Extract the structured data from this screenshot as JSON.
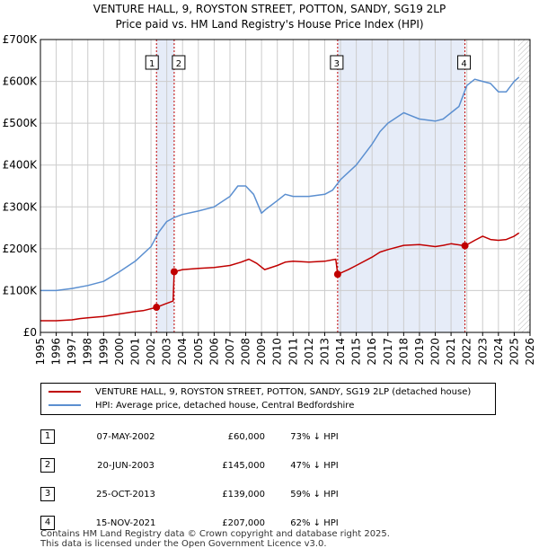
{
  "title_line1": "VENTURE HALL, 9, ROYSTON STREET, POTTON, SANDY, SG19 2LP",
  "title_line2": "Price paid vs. HM Land Registry's House Price Index (HPI)",
  "colors": {
    "property": "#c00000",
    "hpi": "#5b8fd0",
    "shade": "#e6ecf8",
    "grid": "#cccccc"
  },
  "chart_data": {
    "type": "line",
    "xlim": [
      1995,
      2026
    ],
    "ylim": [
      0,
      700000
    ],
    "y_ticks": [
      0,
      100000,
      200000,
      300000,
      400000,
      500000,
      600000,
      700000
    ],
    "y_tick_labels": [
      "£0",
      "£100K",
      "£200K",
      "£300K",
      "£400K",
      "£500K",
      "£600K",
      "£700K"
    ],
    "x_ticks": [
      1995,
      1996,
      1997,
      1998,
      1999,
      2000,
      2001,
      2002,
      2003,
      2004,
      2005,
      2006,
      2007,
      2008,
      2009,
      2010,
      2011,
      2012,
      2013,
      2014,
      2015,
      2016,
      2017,
      2018,
      2019,
      2020,
      2021,
      2022,
      2023,
      2024,
      2025,
      2026
    ],
    "shaded_ranges": [
      [
        2002.35,
        2003.47
      ],
      [
        2013.82,
        2021.88
      ]
    ],
    "hatched_from": 2025.25,
    "series": [
      {
        "name": "VENTURE HALL, 9, ROYSTON STREET, POTTON, SANDY, SG19 2LP (detached house)",
        "x": [
          1995,
          1996,
          1997,
          1997.5,
          1998,
          1999,
          2000,
          2001,
          2001.5,
          2002.35,
          2002.9,
          2003.4,
          2003.47,
          2004,
          2005,
          2006,
          2007,
          2007.7,
          2008.2,
          2008.7,
          2009.2,
          2010,
          2010.5,
          2011,
          2012,
          2013,
          2013.7,
          2013.82,
          2014.5,
          2015,
          2016,
          2016.5,
          2017,
          2018,
          2019,
          2020,
          2020.5,
          2021,
          2021.88,
          2022.5,
          2023,
          2023.5,
          2024,
          2024.5,
          2025,
          2025.3
        ],
        "values": [
          28000,
          28000,
          30000,
          33000,
          35000,
          38000,
          44000,
          50000,
          52000,
          60000,
          68000,
          75000,
          145000,
          150000,
          153000,
          155000,
          160000,
          168000,
          175000,
          165000,
          150000,
          160000,
          168000,
          170000,
          168000,
          170000,
          175000,
          139000,
          150000,
          160000,
          180000,
          192000,
          198000,
          208000,
          210000,
          205000,
          208000,
          212000,
          207000,
          220000,
          230000,
          222000,
          220000,
          222000,
          230000,
          238000
        ]
      },
      {
        "name": "HPI: Average price, detached house, Central Bedfordshire",
        "x": [
          1995,
          1996,
          1997,
          1998,
          1999,
          2000,
          2001,
          2002,
          2002.5,
          2003,
          2003.5,
          2004,
          2005,
          2006,
          2007,
          2007.5,
          2008,
          2008.5,
          2009,
          2009.3,
          2010,
          2010.5,
          2011,
          2012,
          2013,
          2013.5,
          2014,
          2015,
          2016,
          2016.5,
          2017,
          2018,
          2019,
          2020,
          2020.5,
          2021,
          2021.5,
          2022,
          2022.5,
          2023,
          2023.5,
          2024,
          2024.5,
          2025,
          2025.3
        ],
        "values": [
          100000,
          100000,
          105000,
          112000,
          122000,
          145000,
          170000,
          205000,
          240000,
          265000,
          275000,
          282000,
          290000,
          300000,
          325000,
          350000,
          350000,
          330000,
          285000,
          295000,
          315000,
          330000,
          325000,
          325000,
          330000,
          340000,
          365000,
          400000,
          450000,
          480000,
          500000,
          525000,
          510000,
          505000,
          510000,
          525000,
          540000,
          590000,
          605000,
          600000,
          595000,
          575000,
          575000,
          600000,
          610000
        ]
      }
    ],
    "sale_markers": [
      {
        "label": "1",
        "x": 2002.35,
        "value": 60000
      },
      {
        "label": "2",
        "x": 2003.47,
        "value": 145000
      },
      {
        "label": "3",
        "x": 2013.82,
        "value": 139000
      },
      {
        "label": "4",
        "x": 2021.88,
        "value": 207000
      }
    ]
  },
  "legend": {
    "property_label": "VENTURE HALL, 9, ROYSTON STREET, POTTON, SANDY, SG19 2LP (detached house)",
    "hpi_label": "HPI: Average price, detached house, Central Bedfordshire"
  },
  "sales": [
    {
      "num": "1",
      "date": "07-MAY-2002",
      "price": "£60,000",
      "hpi": "73% ↓ HPI"
    },
    {
      "num": "2",
      "date": "20-JUN-2003",
      "price": "£145,000",
      "hpi": "47% ↓ HPI"
    },
    {
      "num": "3",
      "date": "25-OCT-2013",
      "price": "£139,000",
      "hpi": "59% ↓ HPI"
    },
    {
      "num": "4",
      "date": "15-NOV-2021",
      "price": "£207,000",
      "hpi": "62% ↓ HPI"
    }
  ],
  "footer_line1": "Contains HM Land Registry data © Crown copyright and database right 2025.",
  "footer_line2": "This data is licensed under the Open Government Licence v3.0."
}
